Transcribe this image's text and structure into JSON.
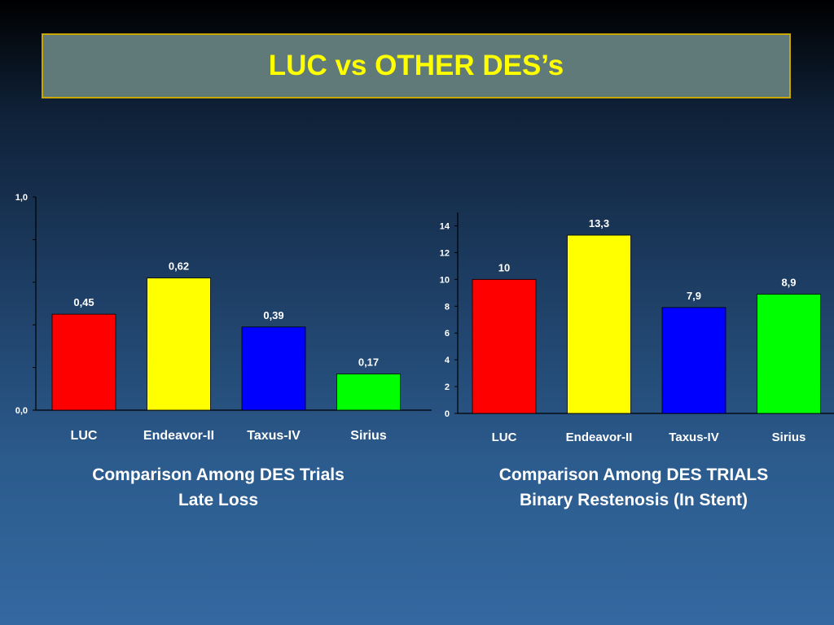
{
  "title": "LUC vs OTHER DES’s",
  "colors": {
    "title_text": "#ffff00",
    "title_bg": "#5f7a78",
    "title_border": "#c8a800"
  },
  "chart_data": [
    {
      "type": "bar",
      "categories": [
        "LUC",
        "Endeavor-II",
        "Taxus-IV",
        "Sirius"
      ],
      "values": [
        0.45,
        0.62,
        0.39,
        0.17
      ],
      "value_labels": [
        "0,45",
        "0,62",
        "0,39",
        "0,17"
      ],
      "colors": [
        "#ff0000",
        "#ffff00",
        "#0000ff",
        "#00ff00"
      ],
      "ylim": [
        0,
        1.0
      ],
      "yticks_labeled": [
        {
          "value": 0,
          "label": "0,0"
        },
        {
          "value": 1.0,
          "label": "1,0"
        }
      ],
      "caption": [
        "Comparison Among DES Trials",
        "Late Loss"
      ],
      "grid": false
    },
    {
      "type": "bar",
      "categories": [
        "LUC",
        "Endeavor-II",
        "Taxus-IV",
        "Sirius"
      ],
      "values": [
        10,
        13.3,
        7.9,
        8.9
      ],
      "value_labels": [
        "10",
        "13,3",
        "7,9",
        "8,9"
      ],
      "colors": [
        "#ff0000",
        "#ffff00",
        "#0000ff",
        "#00ff00"
      ],
      "ylim": [
        0,
        15
      ],
      "yticks_labeled": [
        {
          "value": 0,
          "label": "0"
        },
        {
          "value": 2,
          "label": "2"
        },
        {
          "value": 4,
          "label": "4"
        },
        {
          "value": 6,
          "label": "6"
        },
        {
          "value": 8,
          "label": "8"
        },
        {
          "value": 10,
          "label": "10"
        },
        {
          "value": 12,
          "label": "12"
        },
        {
          "value": 14,
          "label": "14"
        }
      ],
      "caption": [
        "Comparison Among DES TRIALS",
        "Binary Restenosis (In Stent)"
      ],
      "grid": false
    }
  ]
}
